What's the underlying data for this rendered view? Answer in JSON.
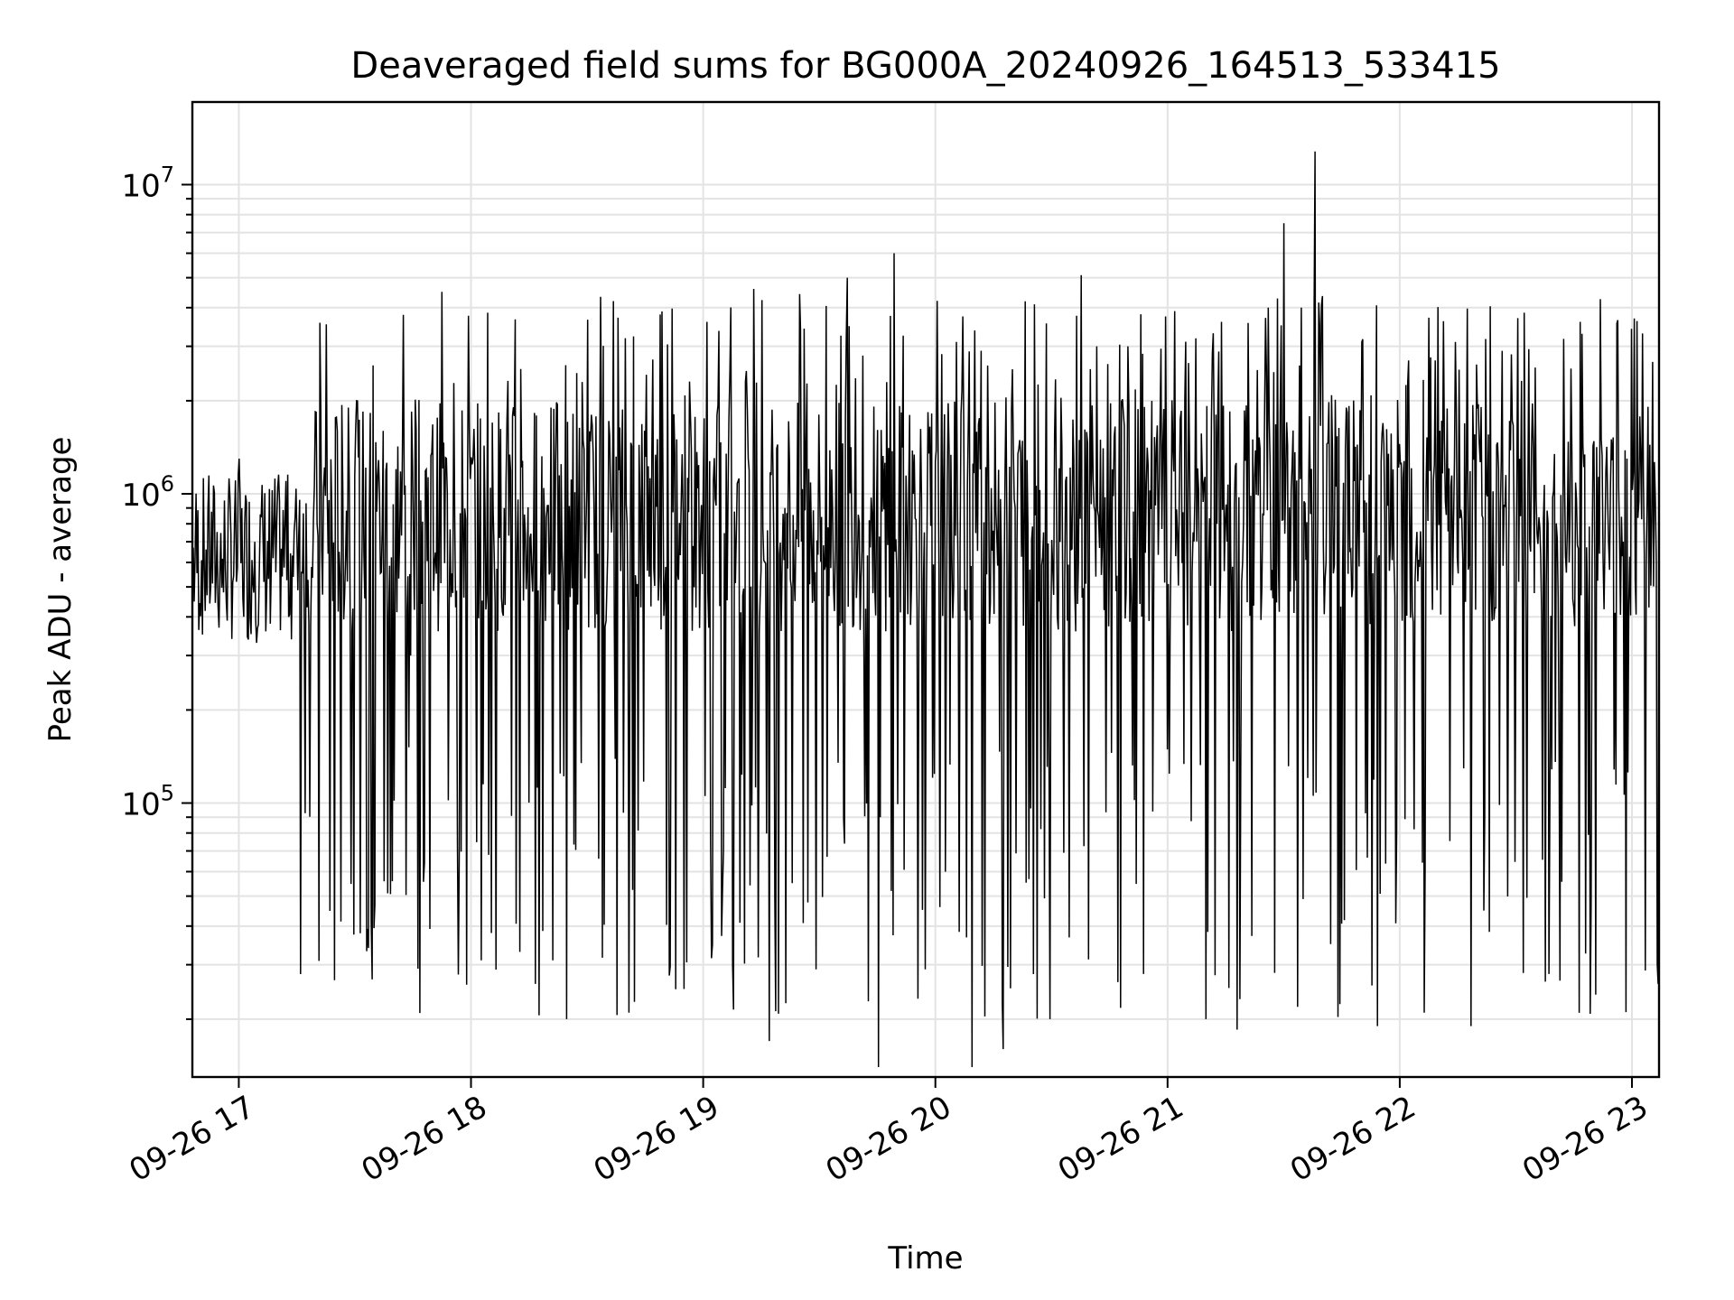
{
  "chart_data": {
    "type": "line",
    "title": "Deaveraged field sums for BG000A_20240926_164513_533415",
    "xlabel": "Time",
    "ylabel": "Peak ADU - average",
    "yscale": "log",
    "grid": true,
    "grid_minor": true,
    "line_color": "#000000",
    "xlim": [
      "09-26 16:48",
      "09-26 23:07"
    ],
    "ylim": [
      13000,
      18500000
    ],
    "x_ticks": [
      {
        "value": "09-26 17:00",
        "label": "09-26 17"
      },
      {
        "value": "09-26 18:00",
        "label": "09-26 18"
      },
      {
        "value": "09-26 19:00",
        "label": "09-26 19"
      },
      {
        "value": "09-26 20:00",
        "label": "09-26 20"
      },
      {
        "value": "09-26 21:00",
        "label": "09-26 21"
      },
      {
        "value": "09-26 22:00",
        "label": "09-26 22"
      },
      {
        "value": "09-26 23:00",
        "label": "09-26 23"
      }
    ],
    "y_ticks": [
      {
        "value": 100000,
        "base": "10",
        "exp": "5"
      },
      {
        "value": 1000000,
        "base": "10",
        "exp": "6"
      },
      {
        "value": 10000000,
        "base": "10",
        "exp": "7"
      }
    ],
    "series": [
      {
        "time_start": "09-26 16:48",
        "time_end": "09-26 23:07",
        "approx_points": 1600,
        "values_sample": [
          620000,
          900000,
          480000,
          1300000,
          700000,
          380000,
          1100000,
          560000,
          800000,
          450000,
          1900000,
          650000,
          1000000,
          520000,
          300000,
          1200000,
          4500000,
          75000,
          1300000,
          68000,
          900000,
          33000,
          26000,
          1900000,
          20000,
          2300000,
          640000,
          4200000,
          21000,
          1600000,
          3800000,
          25000,
          1400000,
          3600000,
          52000,
          1100000,
          4600000,
          17000,
          900000,
          3400000,
          29000,
          1200000,
          5000000,
          2800000,
          14000,
          6000000,
          1800000,
          29000,
          900000,
          3100000,
          14000,
          2600000,
          16000,
          1400000,
          4100000,
          20000,
          1100000,
          5100000,
          3000000,
          1200000,
          3000000,
          28000,
          1000000,
          3900000,
          700000,
          20000,
          3600000,
          18500,
          1500000,
          4000000,
          7500000,
          2600000,
          12800000,
          35000,
          1900000,
          3100000,
          19000,
          1200000,
          2700000,
          21000,
          1600000,
          3100000,
          19000,
          1000000,
          2900000,
          3700000,
          1400000,
          28000,
          1100000,
          3600000,
          24000,
          1500000,
          1300000,
          3300000,
          26000,
          900000,
          1200000
        ]
      }
    ]
  }
}
